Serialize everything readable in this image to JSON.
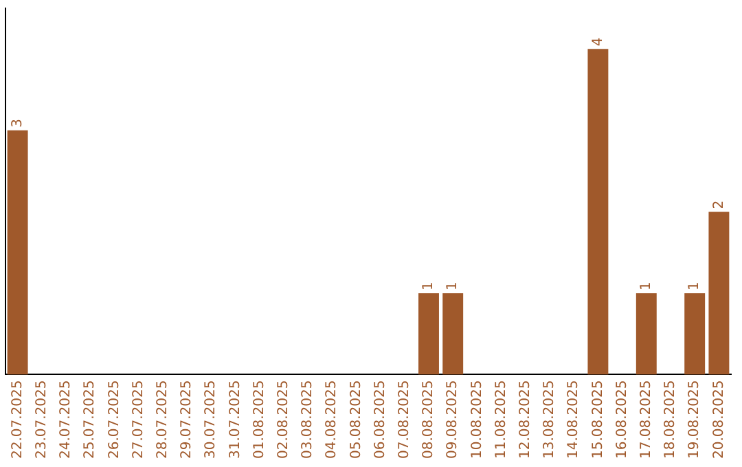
{
  "chart_data": {
    "type": "bar",
    "categories": [
      "22.07.2025",
      "23.07.2025",
      "24.07.2025",
      "25.07.2025",
      "26.07.2025",
      "27.07.2025",
      "28.07.2025",
      "29.07.2025",
      "30.07.2025",
      "31.07.2025",
      "01.08.2025",
      "02.08.2025",
      "03.08.2025",
      "04.08.2025",
      "05.08.2025",
      "06.08.2025",
      "07.08.2025",
      "08.08.2025",
      "09.08.2025",
      "10.08.2025",
      "11.08.2025",
      "12.08.2025",
      "13.08.2025",
      "14.08.2025",
      "15.08.2025",
      "16.08.2025",
      "17.08.2025",
      "18.08.2025",
      "19.08.2025",
      "20.08.2025"
    ],
    "values": [
      3,
      0,
      0,
      0,
      0,
      0,
      0,
      0,
      0,
      0,
      0,
      0,
      0,
      0,
      0,
      0,
      0,
      1,
      1,
      0,
      0,
      0,
      0,
      0,
      4,
      0,
      1,
      0,
      1,
      2
    ],
    "value_labels": [
      "3",
      null,
      null,
      null,
      null,
      null,
      null,
      null,
      null,
      null,
      null,
      null,
      null,
      null,
      null,
      null,
      null,
      "1",
      "1",
      null,
      null,
      null,
      null,
      null,
      "4",
      null,
      "1",
      null,
      "1",
      "2"
    ],
    "color": "#a0592b",
    "grid": false,
    "legend": false,
    "tick_labels": "x"
  }
}
